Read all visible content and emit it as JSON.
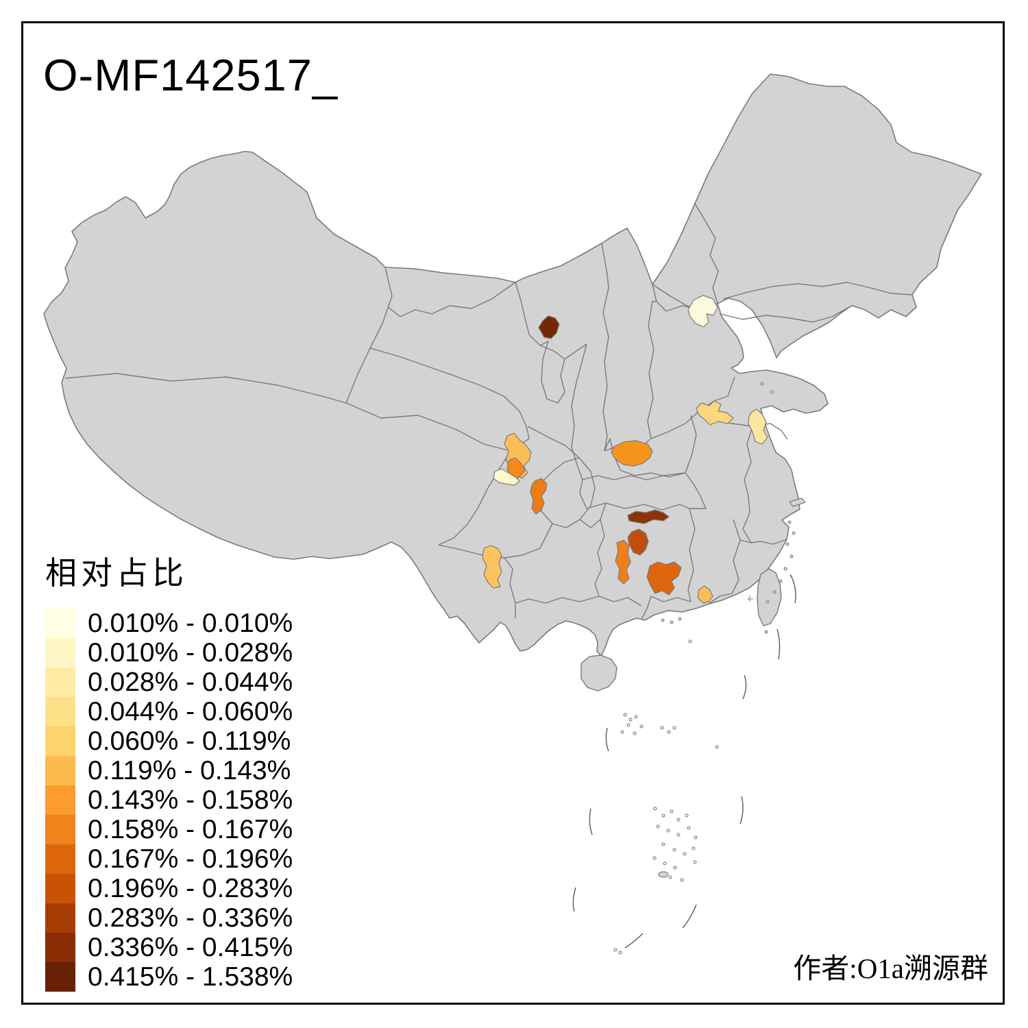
{
  "page": {
    "title": "O-MF142517_",
    "attribution": "作者:O1a溯源群"
  },
  "legend": {
    "title": "相对占比",
    "items": [
      {
        "range": "0.010% - 0.010%",
        "color": "#FFFFE3"
      },
      {
        "range": "0.010% - 0.028%",
        "color": "#FFF7C5"
      },
      {
        "range": "0.028% - 0.044%",
        "color": "#FEECA4"
      },
      {
        "range": "0.044% - 0.060%",
        "color": "#FDE189"
      },
      {
        "range": "0.060% - 0.119%",
        "color": "#FDD36D"
      },
      {
        "range": "0.119% - 0.143%",
        "color": "#FDBA4E"
      },
      {
        "range": "0.143% - 0.158%",
        "color": "#FC9B2E"
      },
      {
        "range": "0.158% - 0.167%",
        "color": "#F0831C"
      },
      {
        "range": "0.167% - 0.196%",
        "color": "#DE670E"
      },
      {
        "range": "0.196% - 0.283%",
        "color": "#C85305"
      },
      {
        "range": "0.283% - 0.336%",
        "color": "#A63E03"
      },
      {
        "range": "0.336% - 0.415%",
        "color": "#8A2D04"
      },
      {
        "range": "0.415% - 1.538%",
        "color": "#692106"
      }
    ]
  },
  "map": {
    "land_color": "#D3D3D3",
    "border_color": "#7A7A7A",
    "sea_color": "#FFFFFF",
    "highlighted_regions": [
      {
        "id": "beijing",
        "color": "#FCFADC"
      },
      {
        "id": "inner-mongolia-west",
        "color": "#752706"
      },
      {
        "id": "shandong-west",
        "color": "#FCD77C"
      },
      {
        "id": "jiangsu-north",
        "color": "#FCE7A0"
      },
      {
        "id": "hubei-northwest",
        "color": "#F7941E"
      },
      {
        "id": "sichuan-north",
        "color": "#FBBD55"
      },
      {
        "id": "sichuan-chengdu",
        "color": "#F5891C"
      },
      {
        "id": "sichuan-southwest",
        "color": "#FFF7CD"
      },
      {
        "id": "chongqing",
        "color": "#EE7C16"
      },
      {
        "id": "yunnan-central",
        "color": "#FBC45E"
      },
      {
        "id": "hunan-central-dark",
        "color": "#8C3408"
      },
      {
        "id": "hunan-central",
        "color": "#BE500E"
      },
      {
        "id": "hunan-west",
        "color": "#EF7F1B"
      },
      {
        "id": "hunan-southeast",
        "color": "#DD660F"
      },
      {
        "id": "fujian-coast",
        "color": "#FBBE55"
      }
    ]
  }
}
